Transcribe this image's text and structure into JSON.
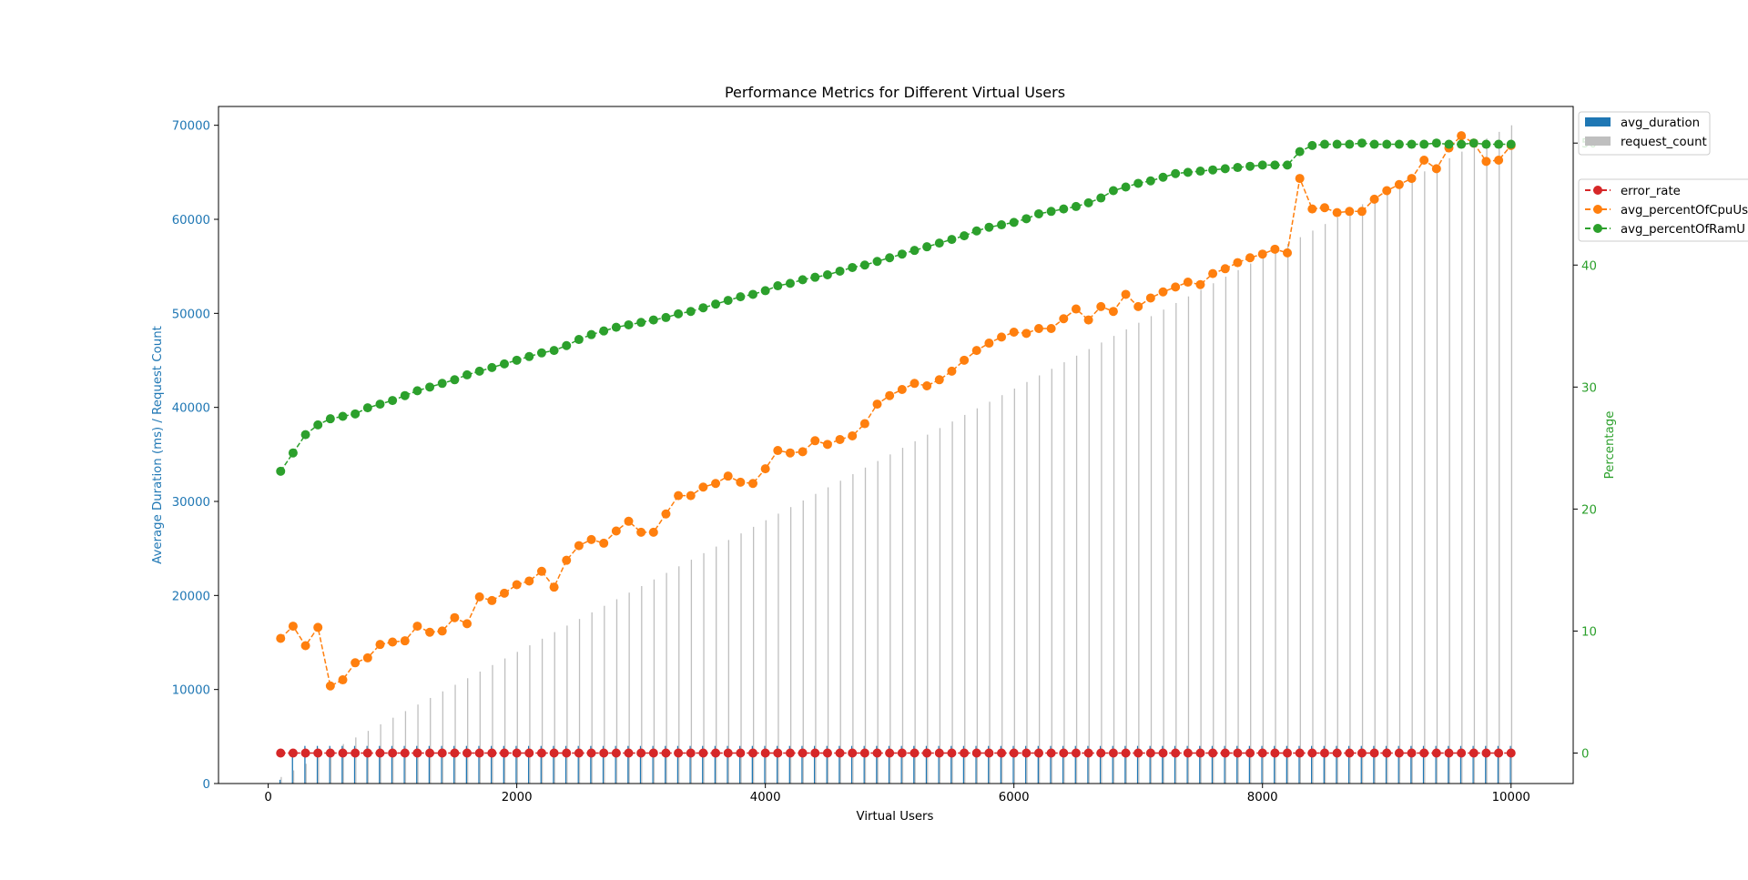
{
  "chart_data": {
    "type": "bar",
    "title": "Performance Metrics for Different Virtual Users",
    "xlabel": "Virtual Users",
    "ylabel_left": "Average Duration (ms) / Request Count",
    "ylabel_right": "Percentage",
    "xlim": [
      -400,
      10500
    ],
    "ylim_left": [
      0,
      72000
    ],
    "ylim_right": [
      -2.5,
      53.0
    ],
    "x_ticks": [
      0,
      2000,
      4000,
      6000,
      8000,
      10000
    ],
    "y_left_ticks": [
      0,
      10000,
      20000,
      30000,
      40000,
      50000,
      60000,
      70000
    ],
    "y_right_ticks": [
      0,
      10,
      20,
      30,
      40,
      50
    ],
    "colors": {
      "avg_duration": "#1f77b4",
      "request_count": "#bfbfbf",
      "error_rate": "#d62728",
      "cpu": "#ff7f0e",
      "ram": "#2ca02c",
      "left_axis": "#1f77b4",
      "right_axis": "#2ca02c"
    },
    "legend_bars": [
      "avg_duration",
      "request_count"
    ],
    "legend_lines": [
      "error_rate",
      "avg_percentOfCpuUs",
      "avg_percentOfRamU"
    ],
    "x": [
      100,
      200,
      300,
      400,
      500,
      600,
      700,
      800,
      900,
      1000,
      1100,
      1200,
      1300,
      1400,
      1500,
      1600,
      1700,
      1800,
      1900,
      2000,
      2100,
      2200,
      2300,
      2400,
      2500,
      2600,
      2700,
      2800,
      2900,
      3000,
      3100,
      3200,
      3300,
      3400,
      3500,
      3600,
      3700,
      3800,
      3900,
      4000,
      4100,
      4200,
      4300,
      4400,
      4500,
      4600,
      4700,
      4800,
      4900,
      5000,
      5100,
      5200,
      5300,
      5400,
      5500,
      5600,
      5700,
      5800,
      5900,
      6000,
      6100,
      6200,
      6300,
      6400,
      6500,
      6600,
      6700,
      6800,
      6900,
      7000,
      7100,
      7200,
      7300,
      7400,
      7500,
      7600,
      7700,
      7800,
      7900,
      8000,
      8100,
      8200,
      8300,
      8400,
      8500,
      8600,
      8700,
      8800,
      8900,
      9000,
      9100,
      9200,
      9300,
      9400,
      9500,
      9600,
      9700,
      9800,
      9900,
      10000
    ],
    "series": [
      {
        "name": "avg_duration",
        "kind": "bar",
        "axis": "left",
        "values": [
          400,
          3000,
          4000,
          4000,
          4000,
          4000,
          4000,
          4000,
          4000,
          4000,
          4000,
          4000,
          4000,
          4000,
          4000,
          4000,
          4000,
          4000,
          4000,
          4000,
          4000,
          4000,
          4000,
          4000,
          4000,
          4000,
          4000,
          4000,
          4000,
          4000,
          4000,
          4000,
          4000,
          4000,
          4000,
          4000,
          4000,
          4000,
          4000,
          4000,
          4000,
          4000,
          4000,
          4000,
          4000,
          4000,
          4000,
          4000,
          4000,
          4000,
          4000,
          4000,
          4000,
          4000,
          4000,
          4000,
          4000,
          4000,
          4000,
          4000,
          4000,
          4000,
          4000,
          4000,
          4000,
          4000,
          4000,
          4000,
          4000,
          4000,
          4000,
          4000,
          4000,
          4000,
          4000,
          4000,
          4000,
          4000,
          4000,
          4000,
          4000,
          4000,
          4000,
          4000,
          4000,
          4000,
          4000,
          4000,
          4000,
          4000,
          4000,
          4000,
          4000,
          4000,
          4000,
          4000,
          4000,
          4000,
          4000,
          4000
        ]
      },
      {
        "name": "request_count",
        "kind": "bar",
        "axis": "left",
        "values": [
          700,
          1400,
          2100,
          2800,
          3500,
          4200,
          4900,
          5600,
          6300,
          7000,
          7700,
          8400,
          9100,
          9800,
          10500,
          11200,
          11900,
          12600,
          13300,
          14000,
          14700,
          15400,
          16100,
          16800,
          17500,
          18200,
          18900,
          19600,
          20300,
          21000,
          21700,
          22400,
          23100,
          23800,
          24500,
          25200,
          25900,
          26600,
          27300,
          28000,
          28700,
          29400,
          30100,
          30800,
          31500,
          32200,
          32900,
          33600,
          34300,
          35000,
          35700,
          36400,
          37100,
          37800,
          38500,
          39200,
          39900,
          40600,
          41300,
          42000,
          42700,
          43400,
          44100,
          44800,
          45500,
          46200,
          46900,
          47600,
          48300,
          49000,
          49700,
          50400,
          51100,
          51800,
          52500,
          53200,
          53900,
          54600,
          55300,
          56000,
          56700,
          57400,
          58100,
          58800,
          59500,
          60200,
          60900,
          61600,
          62300,
          63000,
          63700,
          64400,
          65100,
          65800,
          66500,
          67200,
          67900,
          68600,
          69300,
          70000
        ]
      },
      {
        "name": "error_rate",
        "kind": "line",
        "axis": "right",
        "values": [
          0,
          0,
          0,
          0,
          0,
          0,
          0,
          0,
          0,
          0,
          0,
          0,
          0,
          0,
          0,
          0,
          0,
          0,
          0,
          0,
          0,
          0,
          0,
          0,
          0,
          0,
          0,
          0,
          0,
          0,
          0,
          0,
          0,
          0,
          0,
          0,
          0,
          0,
          0,
          0,
          0,
          0,
          0,
          0,
          0,
          0,
          0,
          0,
          0,
          0,
          0,
          0,
          0,
          0,
          0,
          0,
          0,
          0,
          0,
          0,
          0,
          0,
          0,
          0,
          0,
          0,
          0,
          0,
          0,
          0,
          0,
          0,
          0,
          0,
          0,
          0,
          0,
          0,
          0,
          0,
          0,
          0,
          0,
          0,
          0,
          0,
          0,
          0,
          0,
          0,
          0,
          0,
          0,
          0,
          0,
          0,
          0,
          0,
          0,
          0
        ]
      },
      {
        "name": "avg_percentOfCpuUs",
        "kind": "line",
        "axis": "right",
        "values": [
          9.4,
          10.4,
          8.8,
          10.3,
          5.5,
          6.0,
          7.4,
          7.8,
          8.9,
          9.1,
          9.2,
          10.4,
          9.9,
          10.0,
          11.1,
          10.6,
          12.8,
          12.5,
          13.1,
          13.8,
          14.1,
          14.9,
          13.6,
          15.8,
          17.0,
          17.5,
          17.2,
          18.2,
          19.0,
          18.1,
          18.1,
          19.6,
          21.1,
          21.1,
          21.8,
          22.1,
          22.7,
          22.2,
          22.1,
          23.3,
          24.8,
          24.6,
          24.7,
          25.6,
          25.3,
          25.7,
          26.0,
          27.0,
          28.6,
          29.3,
          29.8,
          30.3,
          30.1,
          30.6,
          31.3,
          32.2,
          33.0,
          33.6,
          34.1,
          34.5,
          34.4,
          34.8,
          34.8,
          35.6,
          36.4,
          35.5,
          36.6,
          36.2,
          37.6,
          36.6,
          37.3,
          37.8,
          38.2,
          38.6,
          38.4,
          39.3,
          39.7,
          40.2,
          40.6,
          40.9,
          41.3,
          41.0,
          47.1,
          44.6,
          44.7,
          44.3,
          44.4,
          44.4,
          45.4,
          46.1,
          46.6,
          47.1,
          48.6,
          47.9,
          49.6,
          50.6,
          50.0,
          48.5,
          48.6,
          49.8
        ]
      },
      {
        "name": "avg_percentOfRamU",
        "kind": "line",
        "axis": "right",
        "values": [
          23.1,
          24.6,
          26.1,
          26.9,
          27.4,
          27.6,
          27.8,
          28.3,
          28.6,
          28.9,
          29.3,
          29.7,
          30.0,
          30.3,
          30.6,
          31.0,
          31.3,
          31.6,
          31.9,
          32.2,
          32.5,
          32.8,
          33.0,
          33.4,
          33.9,
          34.3,
          34.6,
          34.9,
          35.1,
          35.3,
          35.5,
          35.7,
          36.0,
          36.2,
          36.5,
          36.8,
          37.1,
          37.4,
          37.6,
          37.9,
          38.3,
          38.5,
          38.8,
          39.0,
          39.2,
          39.5,
          39.8,
          40.0,
          40.3,
          40.6,
          40.9,
          41.2,
          41.5,
          41.8,
          42.1,
          42.4,
          42.8,
          43.1,
          43.3,
          43.5,
          43.8,
          44.2,
          44.4,
          44.6,
          44.8,
          45.1,
          45.5,
          46.1,
          46.4,
          46.7,
          46.9,
          47.2,
          47.5,
          47.6,
          47.7,
          47.8,
          47.9,
          48.0,
          48.1,
          48.2,
          48.2,
          48.2,
          49.3,
          49.8,
          49.9,
          49.9,
          49.9,
          50.0,
          49.9,
          49.9,
          49.9,
          49.9,
          49.9,
          50.0,
          49.9,
          49.9,
          50.0,
          49.9,
          49.9,
          49.9
        ]
      }
    ]
  }
}
